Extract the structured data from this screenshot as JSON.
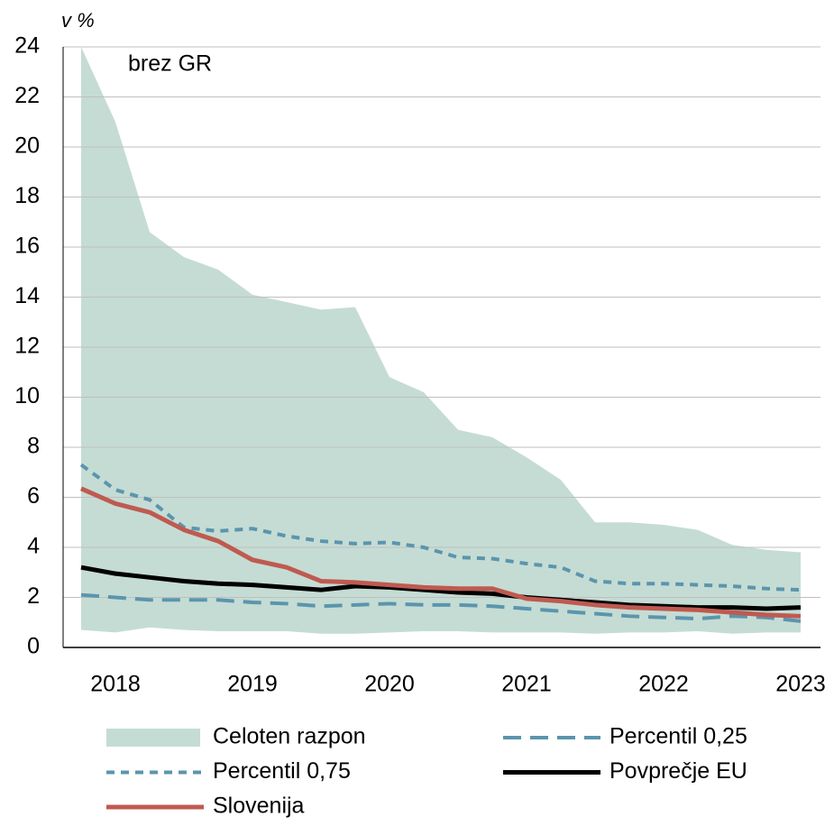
{
  "chart_data": {
    "type": "line",
    "y_label": "v %",
    "annotation": "brez GR",
    "categories": [
      null,
      "2018",
      null,
      null,
      null,
      "2019",
      null,
      null,
      null,
      "2020",
      null,
      null,
      null,
      "2021",
      null,
      null,
      null,
      "2022",
      null,
      null,
      null,
      "2023"
    ],
    "ylim": [
      0,
      24
    ],
    "yticks": [
      0,
      2,
      4,
      6,
      8,
      10,
      12,
      14,
      16,
      18,
      20,
      22,
      24
    ],
    "grid": true,
    "series": [
      {
        "name": "Celoten razpon",
        "color": "#c5dcd4",
        "style": "range",
        "high": [
          24,
          21,
          16.6,
          15.6,
          15.1,
          14.1,
          13.8,
          13.5,
          13.6,
          10.8,
          10.2,
          8.7,
          8.4,
          7.6,
          6.7,
          5.0,
          5.0,
          4.9,
          4.7,
          4.1,
          3.9,
          3.8
        ],
        "low": [
          0.7,
          0.6,
          0.8,
          0.7,
          0.65,
          0.65,
          0.65,
          0.55,
          0.55,
          0.6,
          0.65,
          0.65,
          0.6,
          0.6,
          0.6,
          0.55,
          0.6,
          0.6,
          0.65,
          0.55,
          0.6,
          0.6
        ]
      },
      {
        "name": "Percentil 0,25",
        "color": "#5b95ad",
        "style": "long-dash",
        "values": [
          2.1,
          2.0,
          1.9,
          1.9,
          1.9,
          1.8,
          1.75,
          1.65,
          1.7,
          1.75,
          1.7,
          1.7,
          1.65,
          1.55,
          1.45,
          1.35,
          1.25,
          1.2,
          1.15,
          1.25,
          1.2,
          1.05
        ]
      },
      {
        "name": "Percentil 0,75",
        "color": "#5b95ad",
        "style": "short-dash",
        "values": [
          7.3,
          6.3,
          5.9,
          4.8,
          4.65,
          4.75,
          4.45,
          4.25,
          4.15,
          4.2,
          4.0,
          3.6,
          3.55,
          3.35,
          3.2,
          2.65,
          2.55,
          2.55,
          2.5,
          2.45,
          2.35,
          2.3
        ]
      },
      {
        "name": "Povprečje EU",
        "color": "#000000",
        "style": "solid",
        "values": [
          3.2,
          2.95,
          2.8,
          2.65,
          2.55,
          2.5,
          2.4,
          2.3,
          2.45,
          2.4,
          2.3,
          2.2,
          2.15,
          2.0,
          1.9,
          1.8,
          1.7,
          1.65,
          1.6,
          1.6,
          1.55,
          1.6
        ]
      },
      {
        "name": "Slovenija",
        "color": "#bf5a50",
        "style": "solid",
        "values": [
          6.35,
          5.75,
          5.4,
          4.7,
          4.25,
          3.5,
          3.2,
          2.65,
          2.6,
          2.5,
          2.4,
          2.35,
          2.35,
          1.95,
          1.85,
          1.7,
          1.6,
          1.55,
          1.5,
          1.4,
          1.3,
          1.25
        ]
      }
    ]
  }
}
